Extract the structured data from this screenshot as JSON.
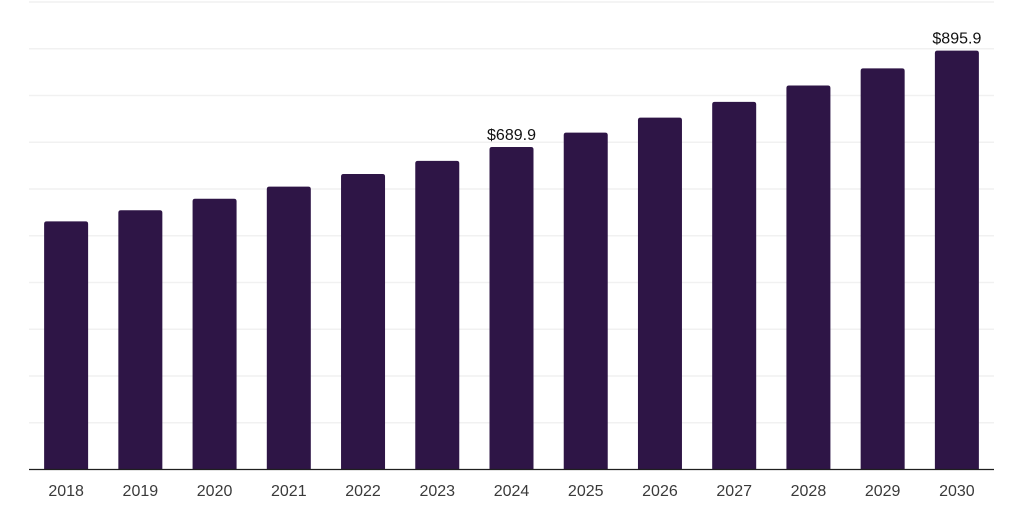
{
  "chart_data": {
    "type": "bar",
    "title": "",
    "xlabel": "",
    "ylabel": "",
    "categories": [
      "2018",
      "2019",
      "2020",
      "2021",
      "2022",
      "2023",
      "2024",
      "2025",
      "2026",
      "2027",
      "2028",
      "2029",
      "2030"
    ],
    "values": [
      530.8,
      554.5,
      579.2,
      605.0,
      632.0,
      660.2,
      689.9,
      720.6,
      752.7,
      786.3,
      821.3,
      857.9,
      895.9
    ],
    "data_labels": {
      "2024": "$689.9",
      "2030": "$895.9"
    },
    "ylim": [
      0,
      1000
    ],
    "grid": {
      "horizontal": true,
      "step": 100,
      "vertical": false
    },
    "legend": "none",
    "colors": {
      "bar": "#2e1546",
      "gridline": "#f1f1f1",
      "axis_line": "#1f1f1f",
      "tick_label": "#3a3a3a",
      "data_label": "#111111",
      "background": "#ffffff"
    }
  }
}
